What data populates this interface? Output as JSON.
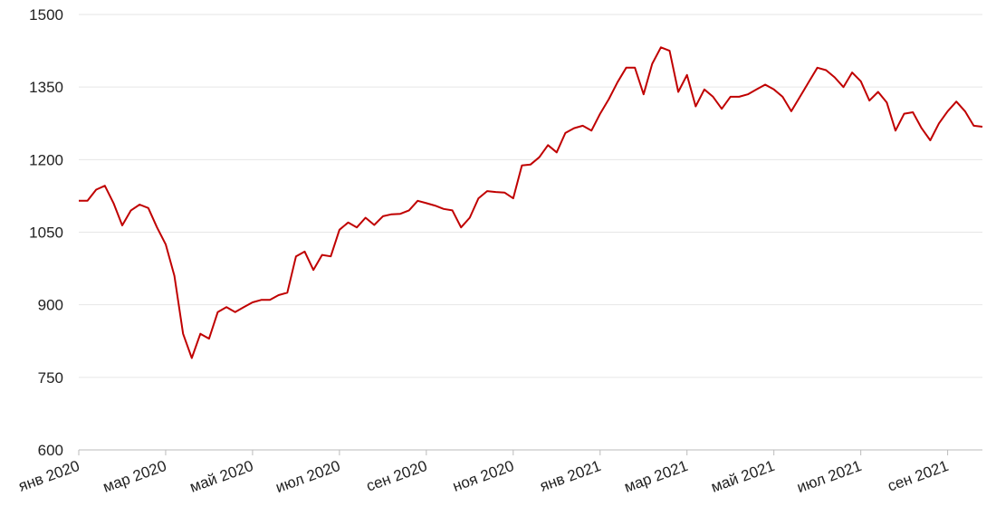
{
  "chart_data": {
    "type": "line",
    "x": [
      0,
      0.2,
      0.4,
      0.6,
      0.8,
      1,
      1.2,
      1.4,
      1.6,
      1.8,
      2,
      2.2,
      2.4,
      2.6,
      2.8,
      3,
      3.2,
      3.4,
      3.6,
      3.8,
      4,
      4.2,
      4.4,
      4.6,
      4.8,
      5,
      5.2,
      5.4,
      5.6,
      5.8,
      6,
      6.2,
      6.4,
      6.6,
      6.8,
      7,
      7.2,
      7.4,
      7.6,
      7.8,
      8,
      8.2,
      8.4,
      8.6,
      8.8,
      9,
      9.2,
      9.4,
      9.6,
      9.8,
      10,
      10.2,
      10.4,
      10.6,
      10.8,
      11,
      11.2,
      11.4,
      11.6,
      11.8,
      12,
      12.2,
      12.4,
      12.6,
      12.8,
      13,
      13.2,
      13.4,
      13.6,
      13.8,
      14,
      14.2,
      14.4,
      14.6,
      14.8,
      15,
      15.2,
      15.4,
      15.6,
      15.8,
      16,
      16.2,
      16.4,
      16.6,
      16.8,
      17,
      17.2,
      17.4,
      17.6,
      17.8,
      18,
      18.2,
      18.4,
      18.6,
      18.8,
      19,
      19.2,
      19.4,
      19.6,
      19.8,
      20,
      20.2,
      20.4,
      20.6,
      20.8
    ],
    "series": [
      {
        "color": "#c00000",
        "values": [
          1115,
          1115,
          1138,
          1146,
          1110,
          1064,
          1095,
          1107,
          1100,
          1060,
          1025,
          960,
          840,
          790,
          840,
          830,
          885,
          895,
          885,
          895,
          905,
          910,
          910,
          920,
          925,
          1000,
          1010,
          972,
          1003,
          1000,
          1055,
          1070,
          1060,
          1080,
          1065,
          1083,
          1087,
          1088,
          1095,
          1115,
          1110,
          1105,
          1098,
          1095,
          1060,
          1080,
          1120,
          1135,
          1133,
          1132,
          1120,
          1188,
          1190,
          1205,
          1230,
          1215,
          1255,
          1265,
          1270,
          1260,
          1295,
          1325,
          1360,
          1390,
          1390,
          1335,
          1398,
          1432,
          1425,
          1340,
          1375,
          1310,
          1345,
          1330,
          1305,
          1330,
          1330,
          1335,
          1345,
          1355,
          1345,
          1330,
          1300,
          1330,
          1360,
          1390,
          1385,
          1370,
          1350,
          1380,
          1362,
          1322,
          1340,
          1318,
          1260,
          1295,
          1298,
          1265,
          1240,
          1275,
          1300,
          1320,
          1300,
          1270,
          1268
        ]
      }
    ],
    "xlim": [
      0,
      20.8
    ],
    "xticks": [
      {
        "value": 0,
        "label": "янв 2020"
      },
      {
        "value": 2,
        "label": "мар 2020"
      },
      {
        "value": 4,
        "label": "май 2020"
      },
      {
        "value": 6,
        "label": "июл 2020"
      },
      {
        "value": 8,
        "label": "сен 2020"
      },
      {
        "value": 10,
        "label": "ноя 2020"
      },
      {
        "value": 12,
        "label": "янв 2021"
      },
      {
        "value": 14,
        "label": "мар 2021"
      },
      {
        "value": 16,
        "label": "май 2021"
      },
      {
        "value": 18,
        "label": "июл 2021"
      },
      {
        "value": 20,
        "label": "сен 2021"
      }
    ],
    "ylim": [
      600,
      1500
    ],
    "yticks": [
      600,
      750,
      900,
      1050,
      1200,
      1350,
      1500
    ],
    "grid": true
  }
}
